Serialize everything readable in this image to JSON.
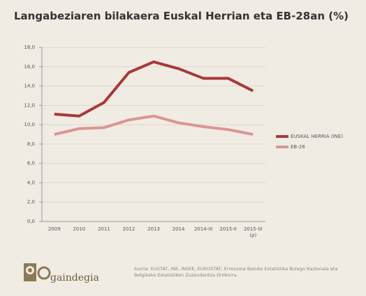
{
  "chart_data": {
    "type": "line",
    "title": "Langabeziaren bilakaera Euskal Herrian eta EB-28an (%)",
    "categories": [
      "2009",
      "2010",
      "2011",
      "2012",
      "2013",
      "2014",
      "2014-III",
      "2015-II",
      "2015-III (p)"
    ],
    "series": [
      {
        "name": "EUSKAL HERRIA (INE)",
        "color": "#a8383a",
        "values": [
          11.1,
          10.9,
          12.3,
          15.4,
          16.5,
          15.8,
          14.8,
          14.8,
          13.5
        ]
      },
      {
        "name": "EB-28",
        "color": "#dc9494",
        "values": [
          9.0,
          9.6,
          9.7,
          10.5,
          10.9,
          10.2,
          9.8,
          9.5,
          9.0
        ]
      }
    ],
    "ylim": [
      0,
      18
    ],
    "yticks": [
      {
        "value": 0,
        "label": "0,0"
      },
      {
        "value": 2,
        "label": "2,0"
      },
      {
        "value": 4,
        "label": "4,0"
      },
      {
        "value": 6,
        "label": "6,0"
      },
      {
        "value": 8,
        "label": "8,0"
      },
      {
        "value": 10,
        "label": "10,0"
      },
      {
        "value": 12,
        "label": "12,0"
      },
      {
        "value": 14,
        "label": "14,0"
      },
      {
        "value": 16,
        "label": "16,0"
      },
      {
        "value": 18,
        "label": "18,0"
      }
    ],
    "grid": true,
    "legend": "right"
  },
  "footer": {
    "logo": "gaindegia",
    "source": "Iturria: EUSTAT, INE, INSEE, EUROSTAT, Erresuma Batuko Estatistika Bulego Nazionala eta Belgikako Estatistiken Zuzendaritza Orokorra."
  }
}
